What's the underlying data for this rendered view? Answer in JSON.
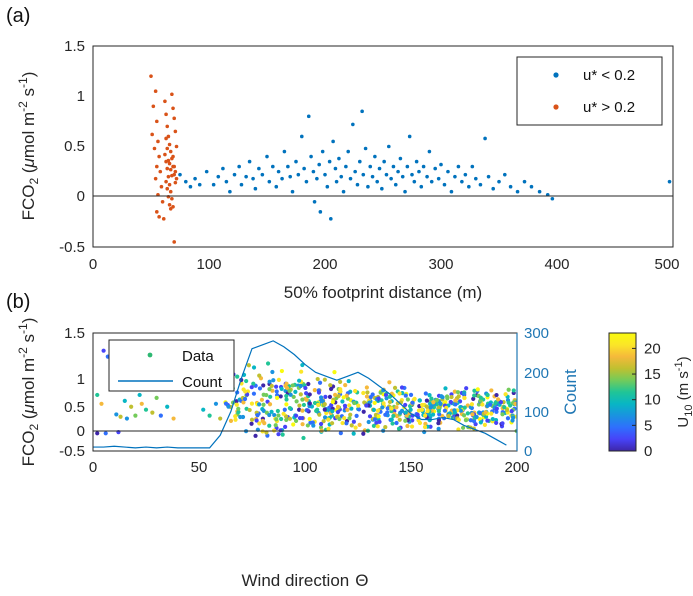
{
  "chart_data": [
    {
      "panel": "(a)",
      "type": "scatter",
      "xlabel": "50% footprint distance (m)",
      "ylabel": "FCO2 (μmol m-2 s-1)",
      "ylabel_parts": {
        "pre": "FCO",
        "sub": "2",
        "mid": " (",
        "mu": "μ",
        "mol": "mol m",
        "exp1": "-2",
        "s": " s",
        "exp2": "-1",
        "close": ")"
      },
      "xlim": [
        0,
        500
      ],
      "ylim": [
        -0.5,
        1.5
      ],
      "xticks": [
        "0",
        "100",
        "200",
        "300",
        "400",
        "500"
      ],
      "yticks": [
        "-0.5",
        "0",
        "0.5",
        "1",
        "1.5"
      ],
      "zero_line": 0,
      "legend_position": "top-right",
      "series": [
        {
          "name": "u* < 0.2",
          "legend_label": "u* < 0.2",
          "color": "#0072BD",
          "points": [
            [
              75,
              0.22
            ],
            [
              80,
              0.15
            ],
            [
              84,
              0.1
            ],
            [
              88,
              0.18
            ],
            [
              92,
              0.12
            ],
            [
              98,
              0.25
            ],
            [
              104,
              0.12
            ],
            [
              108,
              0.2
            ],
            [
              112,
              0.28
            ],
            [
              115,
              0.15
            ],
            [
              118,
              0.05
            ],
            [
              122,
              0.22
            ],
            [
              126,
              0.3
            ],
            [
              128,
              0.12
            ],
            [
              132,
              0.2
            ],
            [
              135,
              0.35
            ],
            [
              138,
              0.18
            ],
            [
              140,
              0.08
            ],
            [
              143,
              0.28
            ],
            [
              146,
              0.22
            ],
            [
              150,
              0.4
            ],
            [
              152,
              0.15
            ],
            [
              155,
              0.3
            ],
            [
              158,
              0.1
            ],
            [
              160,
              0.25
            ],
            [
              163,
              0.18
            ],
            [
              165,
              0.45
            ],
            [
              168,
              0.3
            ],
            [
              170,
              0.2
            ],
            [
              172,
              0.05
            ],
            [
              175,
              0.35
            ],
            [
              177,
              0.22
            ],
            [
              180,
              0.6
            ],
            [
              182,
              0.28
            ],
            [
              184,
              0.15
            ],
            [
              186,
              0.8
            ],
            [
              188,
              0.4
            ],
            [
              190,
              0.25
            ],
            [
              191,
              -0.05
            ],
            [
              193,
              0.18
            ],
            [
              195,
              0.32
            ],
            [
              196,
              -0.15
            ],
            [
              198,
              0.45
            ],
            [
              200,
              0.22
            ],
            [
              202,
              0.1
            ],
            [
              204,
              0.35
            ],
            [
              205,
              -0.22
            ],
            [
              207,
              0.55
            ],
            [
              209,
              0.28
            ],
            [
              210,
              0.15
            ],
            [
              212,
              0.38
            ],
            [
              214,
              0.2
            ],
            [
              216,
              0.05
            ],
            [
              218,
              0.3
            ],
            [
              220,
              0.45
            ],
            [
              222,
              0.18
            ],
            [
              224,
              0.72
            ],
            [
              226,
              0.25
            ],
            [
              228,
              0.12
            ],
            [
              230,
              0.35
            ],
            [
              232,
              0.85
            ],
            [
              233,
              0.22
            ],
            [
              235,
              0.48
            ],
            [
              237,
              0.1
            ],
            [
              239,
              0.3
            ],
            [
              241,
              0.2
            ],
            [
              243,
              0.4
            ],
            [
              245,
              0.15
            ],
            [
              247,
              0.28
            ],
            [
              249,
              0.08
            ],
            [
              251,
              0.35
            ],
            [
              253,
              0.22
            ],
            [
              255,
              0.5
            ],
            [
              257,
              0.18
            ],
            [
              259,
              0.3
            ],
            [
              261,
              0.12
            ],
            [
              263,
              0.25
            ],
            [
              265,
              0.38
            ],
            [
              267,
              0.2
            ],
            [
              269,
              0.05
            ],
            [
              271,
              0.3
            ],
            [
              273,
              0.6
            ],
            [
              275,
              0.22
            ],
            [
              277,
              0.15
            ],
            [
              279,
              0.35
            ],
            [
              281,
              0.25
            ],
            [
              283,
              0.1
            ],
            [
              285,
              0.3
            ],
            [
              288,
              0.2
            ],
            [
              290,
              0.45
            ],
            [
              292,
              0.15
            ],
            [
              295,
              0.28
            ],
            [
              298,
              0.18
            ],
            [
              300,
              0.32
            ],
            [
              303,
              0.12
            ],
            [
              306,
              0.25
            ],
            [
              309,
              0.05
            ],
            [
              312,
              0.2
            ],
            [
              315,
              0.3
            ],
            [
              318,
              0.15
            ],
            [
              321,
              0.22
            ],
            [
              324,
              0.1
            ],
            [
              327,
              0.3
            ],
            [
              330,
              0.18
            ],
            [
              334,
              0.12
            ],
            [
              338,
              0.58
            ],
            [
              341,
              0.2
            ],
            [
              345,
              0.08
            ],
            [
              350,
              0.15
            ],
            [
              355,
              0.22
            ],
            [
              360,
              0.1
            ],
            [
              366,
              0.05
            ],
            [
              372,
              0.15
            ],
            [
              378,
              0.1
            ],
            [
              385,
              0.05
            ],
            [
              392,
              0.02
            ],
            [
              396,
              -0.02
            ],
            [
              497,
              0.15
            ]
          ]
        },
        {
          "name": "u* > 0.2",
          "legend_label": "u* > 0.2",
          "color": "#D95319",
          "points": [
            [
              50,
              1.2
            ],
            [
              54,
              1.05
            ],
            [
              52,
              0.9
            ],
            [
              55,
              0.75
            ],
            [
              51,
              0.62
            ],
            [
              56,
              0.55
            ],
            [
              53,
              0.48
            ],
            [
              57,
              0.4
            ],
            [
              55,
              0.3
            ],
            [
              58,
              0.25
            ],
            [
              54,
              0.18
            ],
            [
              59,
              0.1
            ],
            [
              56,
              0.02
            ],
            [
              60,
              -0.05
            ],
            [
              55,
              -0.15
            ],
            [
              61,
              -0.22
            ],
            [
              57,
              -0.2
            ],
            [
              62,
              0.95
            ],
            [
              63,
              0.82
            ],
            [
              64,
              0.7
            ],
            [
              65,
              0.6
            ],
            [
              66,
              0.52
            ],
            [
              67,
              0.45
            ],
            [
              68,
              0.38
            ],
            [
              69,
              0.3
            ],
            [
              70,
              0.22
            ],
            [
              63,
              0.15
            ],
            [
              64,
              0.08
            ],
            [
              65,
              0.0
            ],
            [
              66,
              -0.08
            ],
            [
              67,
              -0.12
            ],
            [
              68,
              1.02
            ],
            [
              69,
              0.88
            ],
            [
              70,
              0.78
            ],
            [
              71,
              0.65
            ],
            [
              72,
              0.5
            ],
            [
              62,
              0.42
            ],
            [
              63,
              0.35
            ],
            [
              64,
              0.28
            ],
            [
              65,
              0.2
            ],
            [
              66,
              0.12
            ],
            [
              67,
              0.05
            ],
            [
              68,
              -0.02
            ],
            [
              69,
              -0.1
            ],
            [
              70,
              -0.45
            ],
            [
              71,
              0.25
            ],
            [
              72,
              0.18
            ],
            [
              66,
              0.33
            ],
            [
              67,
              0.27
            ],
            [
              68,
              0.21
            ],
            [
              69,
              0.4
            ],
            [
              64,
              0.48
            ],
            [
              65,
              0.36
            ],
            [
              70,
              0.3
            ],
            [
              71,
              0.14
            ],
            [
              63,
              0.58
            ]
          ]
        }
      ]
    },
    {
      "panel": "(b)",
      "type": "scatter",
      "xlabel": "Wind direction Θ",
      "xlabel_parts": {
        "text": "Wind direction",
        "symbol": "Θ"
      },
      "ylabel": "FCO2 (μmol m-2 s-1)",
      "ylabel_right": "Count",
      "xlim": [
        0,
        200
      ],
      "ylim": [
        -0.5,
        1.5
      ],
      "ylim_right": [
        0,
        300
      ],
      "xticks": [
        "0",
        "50",
        "100",
        "150",
        "200"
      ],
      "yticks": [
        "-0.5",
        "0",
        "0.5",
        "1",
        "1.5"
      ],
      "yticks_right": [
        "0",
        "100",
        "200",
        "300"
      ],
      "zero_line": 0,
      "legend_position": "top-left",
      "legend": [
        "Data",
        "Count"
      ],
      "colorbar": {
        "label": "U10 (m s-1)",
        "label_parts": {
          "u": "U",
          "sub": "10",
          "rest": " (m s",
          "exp": "-1",
          "close": ")"
        },
        "range": [
          0,
          23
        ],
        "ticks": [
          "0",
          "5",
          "10",
          "15",
          "20"
        ],
        "colormap": [
          "#3e26a8",
          "#4743f8",
          "#2f6ffd",
          "#1a93e0",
          "#08b6c4",
          "#20c596",
          "#73cb5a",
          "#c0c030",
          "#f5b93b",
          "#fbe628",
          "#f9fb0e"
        ]
      },
      "series": [
        {
          "name": "Data",
          "points": [
            [
              2,
              0.45,
              12
            ],
            [
              4,
              0.3,
              18
            ],
            [
              5,
              1.2,
              3
            ],
            [
              7,
              1.1,
              5
            ],
            [
              9,
              0.6,
              20
            ],
            [
              11,
              0.12,
              8
            ],
            [
              12,
              -0.18,
              2
            ],
            [
              13,
              0.08,
              15
            ],
            [
              15,
              0.35,
              10
            ],
            [
              16,
              0.05,
              6
            ],
            [
              18,
              0.25,
              17
            ],
            [
              19,
              0.82,
              4
            ],
            [
              20,
              0.1,
              13
            ],
            [
              22,
              0.45,
              9
            ],
            [
              23,
              0.3,
              19
            ],
            [
              25,
              0.2,
              11
            ],
            [
              27,
              0.55,
              7
            ],
            [
              28,
              0.15,
              16
            ],
            [
              30,
              0.4,
              14
            ],
            [
              32,
              0.1,
              5
            ],
            [
              35,
              0.25,
              9
            ],
            [
              38,
              0.05,
              18
            ],
            [
              2,
              -0.2,
              1
            ],
            [
              6,
              -0.2,
              4
            ],
            [
              52,
              0.2,
              10
            ],
            [
              55,
              0.1,
              12
            ],
            [
              58,
              0.3,
              6
            ],
            [
              60,
              0.05,
              16
            ]
          ]
        },
        {
          "name": "Count",
          "color": "#0072BD",
          "x": [
            0,
            5,
            10,
            15,
            20,
            25,
            30,
            35,
            40,
            45,
            50,
            55,
            60,
            65,
            70,
            75,
            80,
            85,
            90,
            95,
            100,
            105,
            110,
            115,
            120,
            125,
            130,
            135,
            140,
            145,
            150,
            155,
            160,
            165,
            170,
            175,
            180,
            185,
            190,
            195
          ],
          "values": [
            10,
            10,
            12,
            10,
            8,
            10,
            8,
            10,
            8,
            8,
            8,
            8,
            40,
            100,
            185,
            260,
            270,
            280,
            265,
            245,
            220,
            200,
            190,
            180,
            190,
            200,
            185,
            165,
            145,
            120,
            95,
            80,
            80,
            85,
            80,
            65,
            55,
            45,
            30,
            15
          ]
        }
      ]
    }
  ]
}
